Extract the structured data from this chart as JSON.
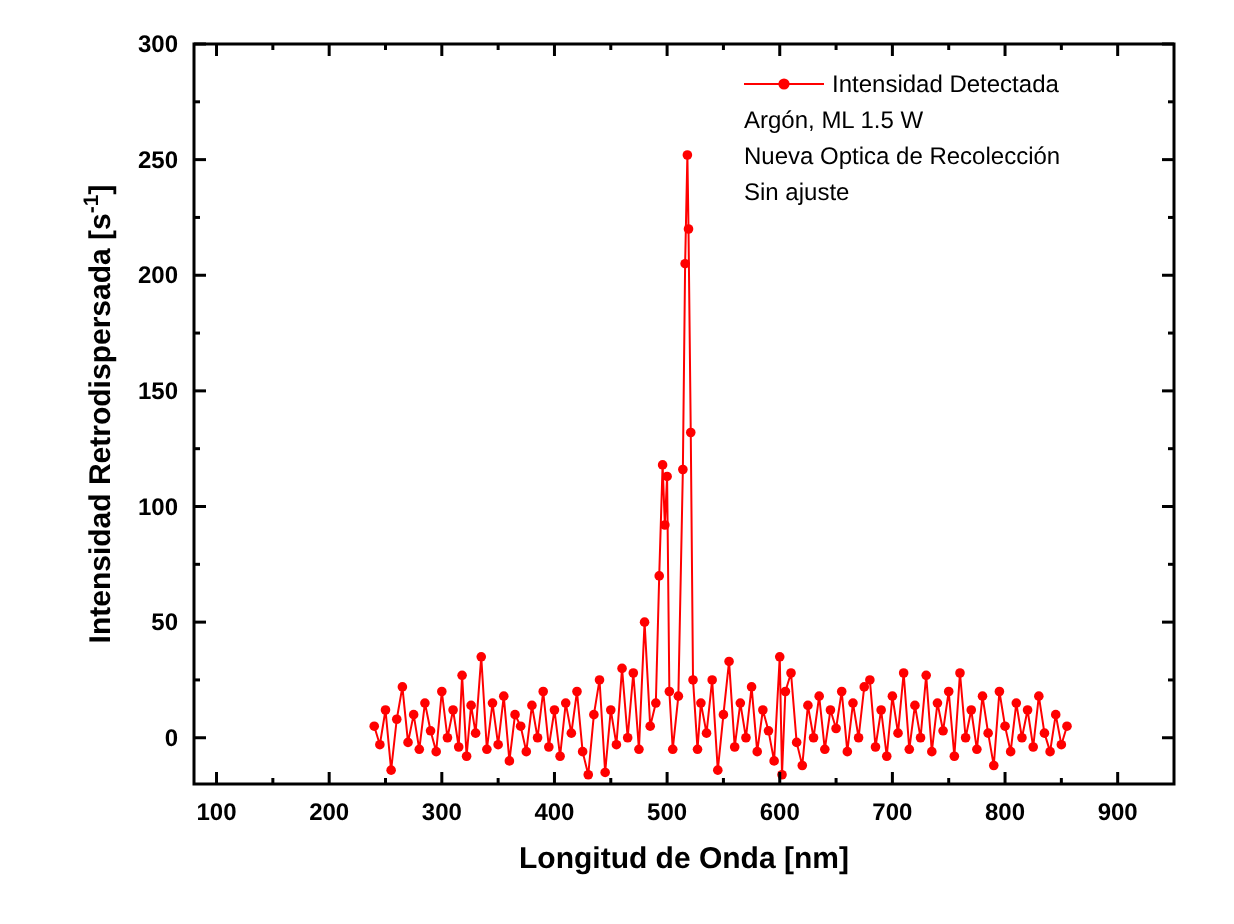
{
  "chart_data": {
    "type": "line",
    "xlabel": "Longitud de Onda [nm]",
    "ylabel": "Intensidad Retrodispersada [s$^{-1}$]",
    "xlim": [
      80,
      950
    ],
    "ylim": [
      -20,
      300
    ],
    "xticks": [
      100,
      {
        "value": 150,
        "label": null
      },
      200,
      {
        "value": 250,
        "label": null
      },
      300,
      {
        "value": 350,
        "label": null
      },
      400,
      {
        "value": 450,
        "label": null
      },
      500,
      {
        "value": 550,
        "label": null
      },
      600,
      {
        "value": 650,
        "label": null
      },
      700,
      {
        "value": 750,
        "label": null
      },
      800,
      {
        "value": 850,
        "label": null
      },
      900
    ],
    "yticks": [
      0,
      {
        "value": 25,
        "label": null
      },
      50,
      {
        "value": 75,
        "label": null
      },
      100,
      {
        "value": 125,
        "label": null
      },
      150,
      {
        "value": 175,
        "label": null
      },
      200,
      {
        "value": 225,
        "label": null
      },
      250,
      {
        "value": 275,
        "label": null
      },
      300
    ],
    "marker": "circle",
    "line_style": "solid",
    "legend": "top right",
    "annotations": [
      "Argón, ML 1.5 W",
      "Nueva Optica de Recolección",
      "Sin ajuste"
    ],
    "series": [
      {
        "name": "Intensidad Detectada",
        "color": "#ff0000",
        "x": [
          240,
          245,
          250,
          255,
          260,
          265,
          270,
          275,
          280,
          285,
          290,
          295,
          300,
          305,
          310,
          315,
          318,
          322,
          326,
          330,
          335,
          340,
          345,
          350,
          355,
          360,
          365,
          370,
          375,
          380,
          385,
          390,
          395,
          400,
          405,
          410,
          415,
          420,
          425,
          430,
          435,
          440,
          445,
          450,
          455,
          460,
          465,
          470,
          475,
          480,
          485,
          490,
          493,
          496,
          498,
          500,
          502,
          505,
          510,
          514,
          516,
          518,
          519,
          521,
          523,
          527,
          530,
          535,
          540,
          545,
          550,
          555,
          560,
          565,
          570,
          575,
          580,
          585,
          590,
          595,
          600,
          602,
          605,
          610,
          615,
          620,
          625,
          630,
          635,
          640,
          645,
          650,
          655,
          660,
          665,
          670,
          675,
          680,
          685,
          690,
          695,
          700,
          705,
          710,
          715,
          720,
          725,
          730,
          735,
          740,
          745,
          750,
          755,
          760,
          765,
          770,
          775,
          780,
          785,
          790,
          795,
          800,
          805,
          810,
          815,
          820,
          825,
          830,
          835,
          840,
          845,
          850,
          855
        ],
        "values": [
          5,
          -3,
          12,
          -14,
          8,
          22,
          -2,
          10,
          -5,
          15,
          3,
          -6,
          20,
          0,
          12,
          -4,
          27,
          -8,
          14,
          2,
          35,
          -5,
          15,
          -3,
          18,
          -10,
          10,
          5,
          -6,
          14,
          0,
          20,
          -4,
          12,
          -8,
          15,
          2,
          20,
          -6,
          -16,
          10,
          25,
          -15,
          12,
          -3,
          30,
          0,
          28,
          -5,
          50,
          5,
          15,
          70,
          118,
          92,
          113,
          20,
          -5,
          18,
          116,
          205,
          252,
          220,
          132,
          25,
          -5,
          15,
          2,
          25,
          -14,
          10,
          33,
          -4,
          15,
          0,
          22,
          -6,
          12,
          3,
          -10,
          35,
          -16,
          20,
          28,
          -2,
          -12,
          14,
          0,
          18,
          -5,
          12,
          4,
          20,
          -6,
          15,
          0,
          22,
          25,
          -4,
          12,
          -8,
          18,
          2,
          28,
          -5,
          14,
          0,
          27,
          -6,
          15,
          3,
          20,
          -8,
          28,
          0,
          12,
          -5,
          18,
          2,
          -12,
          20,
          5,
          -6,
          15,
          0,
          12,
          -4,
          18,
          2,
          -6,
          10,
          -3,
          5
        ]
      }
    ]
  }
}
